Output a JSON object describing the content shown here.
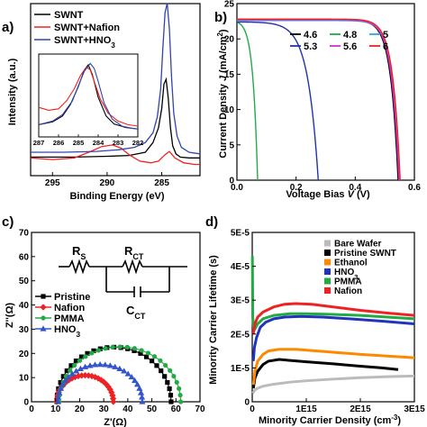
{
  "chart_data": [
    {
      "panel": "a)",
      "type": "line",
      "xlabel": "Binding Energy (eV)",
      "ylabel": "Intensity (a.u.)",
      "xlim": [
        297,
        281.5
      ],
      "x_ticks": [
        "295",
        "290",
        "285"
      ],
      "x_tick_values": [
        295,
        290,
        285
      ],
      "legend_position": "top-left",
      "series": [
        {
          "name": "SWNT",
          "color": "#000000",
          "x": [
            297,
            293,
            290,
            288,
            286.5,
            285.8,
            285.3,
            285.0,
            284.8,
            284.6,
            284.4,
            284.2,
            284.0,
            283.7,
            283.3,
            282.5,
            281.5
          ],
          "y": [
            0.07,
            0.07,
            0.075,
            0.08,
            0.1,
            0.16,
            0.25,
            0.37,
            0.52,
            0.55,
            0.43,
            0.25,
            0.14,
            0.09,
            0.07,
            0.065,
            0.065
          ]
        },
        {
          "name": "SWNT+Nafion",
          "color": "#ee2222",
          "x": [
            297,
            295,
            293,
            291.5,
            290.5,
            289.5,
            288.7,
            288.0,
            287.0,
            286.0,
            285.3,
            284.7,
            284.3,
            283.8,
            283.0,
            282.0,
            281.5
          ],
          "y": [
            0.08,
            0.07,
            0.08,
            0.12,
            0.15,
            0.16,
            0.14,
            0.1,
            0.06,
            0.05,
            0.06,
            0.1,
            0.12,
            0.08,
            0.05,
            0.04,
            0.04
          ]
        },
        {
          "name": "SWNT+HNO<sub>3</sub>",
          "color": "#3344aa",
          "x": [
            297,
            294,
            291,
            289,
            287.5,
            286.5,
            285.8,
            285.4,
            285.1,
            284.9,
            284.7,
            284.5,
            284.3,
            284.1,
            283.9,
            283.6,
            283.2,
            282.5,
            281.5
          ],
          "y": [
            0.06,
            0.06,
            0.065,
            0.075,
            0.09,
            0.12,
            0.18,
            0.28,
            0.45,
            0.7,
            0.92,
            0.98,
            0.82,
            0.52,
            0.3,
            0.16,
            0.09,
            0.06,
            0.05
          ]
        }
      ],
      "inset": {
        "xlim": [
          287,
          282
        ],
        "x_ticks": [
          "287",
          "286",
          "285",
          "284",
          "283",
          "282"
        ],
        "x_tick_values": [
          287,
          286,
          285,
          284,
          283,
          282
        ],
        "series": [
          {
            "name": "SWNT",
            "color": "#000000",
            "x": [
              287,
              286.3,
              285.8,
              285.4,
              285.0,
              284.7,
              284.5,
              284.3,
              284.0,
              283.6,
              283.2,
              282.6,
              282.0
            ],
            "y": [
              0.12,
              0.16,
              0.24,
              0.4,
              0.65,
              0.88,
              0.95,
              0.82,
              0.5,
              0.24,
              0.13,
              0.08,
              0.06
            ]
          },
          {
            "name": "SWNT+Nafion",
            "color": "#ee2222",
            "x": [
              287,
              286.5,
              286.0,
              285.6,
              285.2,
              284.9,
              284.6,
              284.4,
              284.2,
              283.9,
              283.5,
              283.0,
              282.5,
              282.0
            ],
            "y": [
              0.36,
              0.32,
              0.34,
              0.45,
              0.62,
              0.8,
              0.92,
              0.88,
              0.72,
              0.48,
              0.28,
              0.17,
              0.12,
              0.1
            ]
          },
          {
            "name": "SWNT+HNO<sub>3</sub>",
            "color": "#3344aa",
            "x": [
              287,
              286.3,
              285.8,
              285.3,
              285.0,
              284.7,
              284.4,
              284.2,
              284.0,
              283.7,
              283.3,
              282.8,
              282.3,
              282.0
            ],
            "y": [
              0.12,
              0.17,
              0.26,
              0.45,
              0.66,
              0.86,
              0.97,
              0.9,
              0.72,
              0.42,
              0.2,
              0.1,
              0.07,
              0.06
            ]
          }
        ]
      }
    },
    {
      "panel": "b)",
      "type": "line",
      "xlabel": "Voltage Bias V (V)",
      "ylabel": "Current Density J (mA/cm²)",
      "xlim": [
        0,
        0.6
      ],
      "ylim": [
        0,
        25
      ],
      "x_ticks": [
        "0.0",
        "0.2",
        "0.4",
        "0.6"
      ],
      "x_tick_values": [
        0,
        0.2,
        0.4,
        0.6
      ],
      "y_ticks": [
        "0",
        "5",
        "10",
        "15",
        "20",
        "25"
      ],
      "y_tick_values": [
        0,
        5,
        10,
        15,
        20,
        25
      ],
      "legend_position": "top-center",
      "series": [
        {
          "name": "4.6",
          "color": "#000000",
          "jsc": 22.7,
          "voc": 0.545,
          "vt": 0.025
        },
        {
          "name": "4.8",
          "color": "#22aa44",
          "jsc": 22.4,
          "voc": 0.07,
          "vt": 0.016
        },
        {
          "name": "5",
          "color": "#22aadd",
          "jsc": 22.6,
          "voc": 0.55,
          "vt": 0.025
        },
        {
          "name": "5.3",
          "color": "#2233aa",
          "jsc": 22.4,
          "voc": 0.275,
          "vt": 0.035
        },
        {
          "name": "5.6",
          "color": "#cc33cc",
          "jsc": 22.7,
          "voc": 0.548,
          "vt": 0.025
        },
        {
          "name": "6",
          "color": "#ee2222",
          "jsc": 22.8,
          "voc": 0.552,
          "vt": 0.025
        }
      ]
    },
    {
      "panel": "c)",
      "type": "scatter",
      "xlabel": "Z'(Ω)",
      "ylabel": "Z''(Ω)",
      "xlim": [
        0,
        70
      ],
      "ylim": [
        0,
        70
      ],
      "x_ticks": [
        "0",
        "10",
        "20",
        "30",
        "40",
        "50",
        "60",
        "70"
      ],
      "x_tick_values": [
        0,
        10,
        20,
        30,
        40,
        50,
        60,
        70
      ],
      "y_ticks": [
        "0",
        "10",
        "20",
        "30",
        "40",
        "50",
        "60",
        "70"
      ],
      "y_tick_values": [
        0,
        10,
        20,
        30,
        40,
        50,
        60,
        70
      ],
      "legend_position": "middle-left",
      "circuit_labels": {
        "rs": "R<sub>S</sub>",
        "rct": "R<sub>CT</sub>",
        "cct": "C<sub>CT</sub>"
      },
      "series": [
        {
          "name": "Pristine",
          "color": "#000000",
          "marker": "square",
          "r0": 10.5,
          "r1": 58,
          "sag": 0.95
        },
        {
          "name": "Nafion",
          "color": "#ee2222",
          "marker": "diamond",
          "r0": 10.5,
          "r1": 34,
          "sag": 0.93
        },
        {
          "name": "PMMA",
          "color": "#22aa44",
          "marker": "circle",
          "r0": 11.5,
          "r1": 62,
          "sag": 0.9
        },
        {
          "name": "HNO<sub>3</sub>",
          "color": "#3355cc",
          "marker": "triangle",
          "r0": 11,
          "r1": 46,
          "sag": 0.88
        }
      ]
    },
    {
      "panel": "d)",
      "type": "line",
      "xlabel": "Minority Carrier Density (cm⁻³)",
      "ylabel": "Minority Carrier Lifetime (s)",
      "xlim": [
        0,
        3000000000000000.0
      ],
      "ylim": [
        0,
        5e-05
      ],
      "x_ticks": [
        "0",
        "1E15",
        "2E15",
        "3E15"
      ],
      "x_tick_values": [
        0,
        1000000000000000.0,
        2000000000000000.0,
        3000000000000000.0
      ],
      "y_ticks": [
        "0",
        "1E-5",
        "2E-5",
        "3E-5",
        "4E-5",
        "5E-5"
      ],
      "y_tick_values": [
        0,
        1e-05,
        2e-05,
        3e-05,
        4e-05,
        5e-05
      ],
      "legend_position": "top-right",
      "series": [
        {
          "name": "Bare Wafer",
          "color": "#bbbbbb",
          "x": [
            10000000000000.0,
            50000000000000.0,
            100000000000000.0,
            200000000000000.0,
            400000000000000.0,
            700000000000000.0,
            1000000000000000.0,
            1500000000000000.0,
            2000000000000000.0,
            2500000000000000.0,
            3000000000000000.0
          ],
          "y": [
            2.5e-06,
            3.5e-06,
            4e-06,
            4.6e-06,
            5.2e-06,
            5.8e-06,
            6.2e-06,
            6.7e-06,
            7.1e-06,
            7.4e-06,
            7.6e-06
          ]
        },
        {
          "name": "Pristine SWNT",
          "color": "#000000",
          "x": [
            20000000000000.0,
            50000000000000.0,
            100000000000000.0,
            200000000000000.0,
            300000000000000.0,
            500000000000000.0,
            700000000000000.0,
            1000000000000000.0,
            1500000000000000.0,
            2000000000000000.0,
            2400000000000000.0,
            2700000000000000.0
          ],
          "y": [
            4e-06,
            7e-06,
            9e-06,
            1.1e-05,
            1.2e-05,
            1.25e-05,
            1.22e-05,
            1.18e-05,
            1.12e-05,
            1.05e-05,
            1e-05,
            9.5e-06
          ]
        },
        {
          "name": "Ethanol",
          "color": "#ff8800",
          "x": [
            20000000000000.0,
            50000000000000.0,
            100000000000000.0,
            200000000000000.0,
            300000000000000.0,
            500000000000000.0,
            800000000000000.0,
            1200000000000000.0,
            1600000000000000.0,
            2000000000000000.0,
            2500000000000000.0,
            3000000000000000.0
          ],
          "y": [
            5e-06,
            9e-06,
            1.2e-05,
            1.4e-05,
            1.5e-05,
            1.55e-05,
            1.55e-05,
            1.5e-05,
            1.45e-05,
            1.4e-05,
            1.35e-05,
            1.3e-05
          ]
        },
        {
          "name": "HNO<sub>3</sub>",
          "color": "#2233bb",
          "x": [
            20000000000000.0,
            40000000000000.0,
            80000000000000.0,
            150000000000000.0,
            250000000000000.0,
            400000000000000.0,
            600000000000000.0,
            900000000000000.0,
            1300000000000000.0,
            1800000000000000.0,
            2400000000000000.0,
            3000000000000000.0
          ],
          "y": [
            1.2e-05,
            1.6e-05,
            1.9e-05,
            2.2e-05,
            2.35e-05,
            2.45e-05,
            2.5e-05,
            2.52e-05,
            2.5e-05,
            2.45e-05,
            2.38e-05,
            2.3e-05
          ]
        },
        {
          "name": "PMMA",
          "color": "#22aa44",
          "x": [
            3000000000000.0,
            10000000000000.0,
            30000000000000.0,
            50000000000000.0,
            100000000000000.0,
            200000000000000.0,
            400000000000000.0,
            700000000000000.0,
            1000000000000000.0,
            1500000000000000.0,
            2000000000000000.0,
            2500000000000000.0,
            3000000000000000.0
          ],
          "y": [
            4.3e-05,
            2.5e-05,
            2.1e-05,
            2.15e-05,
            2.3e-05,
            2.45e-05,
            2.55e-05,
            2.6e-05,
            2.6e-05,
            2.58e-05,
            2.55e-05,
            2.5e-05,
            2.45e-05
          ]
        },
        {
          "name": "Nafion",
          "color": "#ee2222",
          "x": [
            20000000000000.0,
            50000000000000.0,
            100000000000000.0,
            200000000000000.0,
            400000000000000.0,
            600000000000000.0,
            800000000000000.0,
            1100000000000000.0,
            1500000000000000.0,
            2000000000000000.0,
            2500000000000000.0,
            3000000000000000.0
          ],
          "y": [
            2e-05,
            2.3e-05,
            2.5e-05,
            2.65e-05,
            2.8e-05,
            2.88e-05,
            2.9e-05,
            2.88e-05,
            2.8e-05,
            2.7e-05,
            2.62e-05,
            2.55e-05
          ]
        }
      ]
    }
  ]
}
